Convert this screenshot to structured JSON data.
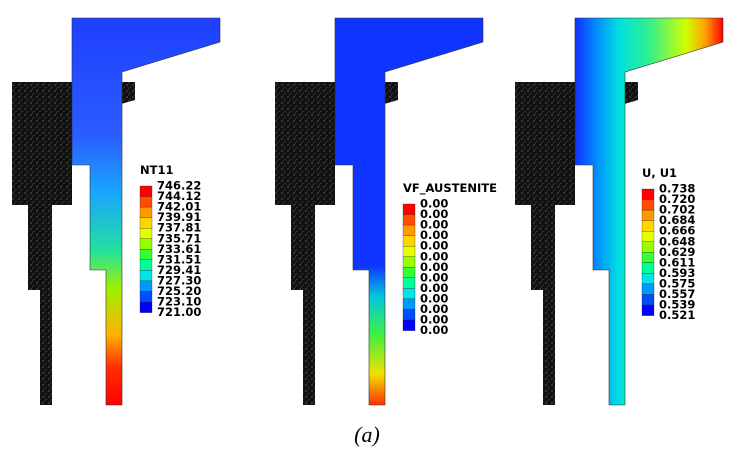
{
  "panels": [
    {
      "legend_title": "NT11",
      "legend_labels": [
        "746.22",
        "744.12",
        "742.01",
        "739.91",
        "737.81",
        "735.71",
        "733.61",
        "731.51",
        "729.41",
        "727.30",
        "725.20",
        "723.10",
        "721.00"
      ]
    },
    {
      "legend_title": "VF_AUSTENITE",
      "legend_labels": [
        "0.00",
        "0.00",
        "0.00",
        "0.00",
        "0.00",
        "0.00",
        "0.00",
        "0.00",
        "0.00",
        "0.00",
        "0.00",
        "0.00",
        "0.00"
      ]
    },
    {
      "legend_title": "U, U1",
      "legend_labels": [
        "0.738",
        "0.720",
        "0.702",
        "0.684",
        "0.666",
        "0.648",
        "0.629",
        "0.611",
        "0.593",
        "0.575",
        "0.557",
        "0.539",
        "0.521"
      ]
    }
  ],
  "caption": "(a)"
}
